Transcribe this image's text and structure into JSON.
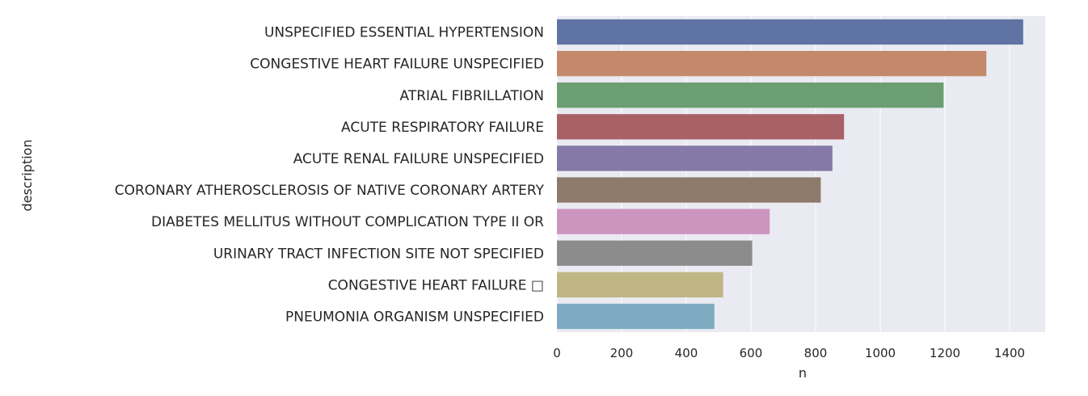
{
  "chart_data": {
    "type": "bar",
    "orientation": "horizontal",
    "title": "",
    "xlabel": "n",
    "ylabel": "description",
    "xlim": [
      0,
      1510
    ],
    "xticks": [
      0,
      200,
      400,
      600,
      800,
      1000,
      1200,
      1400
    ],
    "grid": true,
    "legend": "none",
    "categories": [
      "UNSPECIFIED ESSENTIAL HYPERTENSION",
      "CONGESTIVE HEART FAILURE UNSPECIFIED",
      "ATRIAL FIBRILLATION",
      "ACUTE RESPIRATORY FAILURE",
      "ACUTE RENAL FAILURE UNSPECIFIED",
      "CORONARY ATHEROSCLEROSIS OF NATIVE CORONARY ARTERY",
      "DIABETES MELLITUS WITHOUT COMPLICATION TYPE II OR",
      "URINARY TRACT INFECTION SITE NOT SPECIFIED",
      "CONGESTIVE HEART FAILURE              □",
      "PNEUMONIA ORGANISM UNSPECIFIED"
    ],
    "values": [
      1442,
      1328,
      1196,
      888,
      852,
      816,
      658,
      604,
      514,
      487
    ],
    "colors": [
      "#5f74a4",
      "#c4896a",
      "#6b9e73",
      "#a86164",
      "#8479a7",
      "#8d7a6a",
      "#cc95bf",
      "#8c8c8c",
      "#c0b585",
      "#7eabc1"
    ],
    "plot_background": "#eaeaf2",
    "grid_color": "#ffffff"
  }
}
